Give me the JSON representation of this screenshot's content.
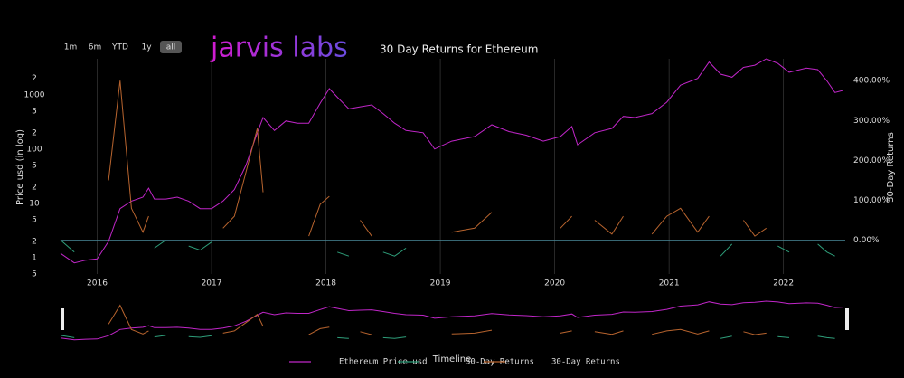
{
  "header": {
    "logo": "jarvis labs",
    "buttons": [
      "1m",
      "6m",
      "YTD",
      "1y",
      "all"
    ]
  },
  "chart_data": {
    "type": "line",
    "title": "30 Day Returns for Ethereum",
    "x_label": "Timeline",
    "y_label": "Price usd (in log)",
    "y2_label": "30-Day Returns",
    "yscale": "log",
    "grid": true,
    "x": [
      2015.68,
      2015.8,
      2015.9,
      2016.0,
      2016.1,
      2016.2,
      2016.3,
      2016.4,
      2016.45,
      2016.5,
      2016.6,
      2016.7,
      2016.8,
      2016.9,
      2017.0,
      2017.1,
      2017.2,
      2017.3,
      2017.4,
      2017.45,
      2017.55,
      2017.65,
      2017.75,
      2017.85,
      2017.95,
      2018.03,
      2018.1,
      2018.2,
      2018.3,
      2018.4,
      2018.5,
      2018.6,
      2018.7,
      2018.85,
      2018.95,
      2019.1,
      2019.3,
      2019.45,
      2019.6,
      2019.75,
      2019.9,
      2020.05,
      2020.15,
      2020.2,
      2020.35,
      2020.5,
      2020.6,
      2020.7,
      2020.85,
      2020.98,
      2021.1,
      2021.25,
      2021.35,
      2021.45,
      2021.55,
      2021.65,
      2021.75,
      2021.85,
      2021.95,
      2022.05,
      2022.2,
      2022.3,
      2022.38,
      2022.45,
      2022.52
    ],
    "series": [
      {
        "name": "Ethereum Price usd",
        "color": "#c026c8",
        "values": [
          1.2,
          0.8,
          0.9,
          0.95,
          2,
          8,
          11,
          13,
          19,
          12,
          12,
          13,
          11,
          8,
          8,
          11,
          18,
          50,
          200,
          380,
          220,
          330,
          300,
          300,
          700,
          1300,
          900,
          550,
          600,
          650,
          450,
          300,
          220,
          200,
          100,
          140,
          170,
          280,
          210,
          180,
          140,
          170,
          260,
          120,
          200,
          240,
          400,
          380,
          450,
          730,
          1500,
          2000,
          4000,
          2400,
          2100,
          3200,
          3500,
          4600,
          3800,
          2600,
          3100,
          2900,
          1800,
          1100,
          1200
        ]
      },
      {
        "name": "30-Day Returns",
        "color": "#2e9e7a",
        "axis": "y2",
        "values": [
          0,
          -30,
          null,
          -10,
          null,
          null,
          null,
          null,
          null,
          -20,
          0,
          null,
          -15,
          -25,
          -5,
          null,
          null,
          null,
          null,
          null,
          -30,
          null,
          -10,
          null,
          null,
          null,
          -30,
          -40,
          null,
          null,
          -30,
          -40,
          -20,
          null,
          -45,
          null,
          null,
          null,
          -25,
          null,
          -20,
          null,
          null,
          -50,
          null,
          null,
          null,
          -10,
          null,
          null,
          null,
          null,
          null,
          -40,
          -10,
          null,
          null,
          null,
          -15,
          -30,
          null,
          -10,
          -30,
          -40,
          null
        ]
      },
      {
        "name": "30-Day Returns",
        "color": "#b8642e",
        "axis": "y2",
        "values": [
          null,
          null,
          20,
          null,
          150,
          400,
          80,
          20,
          60,
          null,
          null,
          10,
          null,
          null,
          null,
          30,
          60,
          170,
          280,
          120,
          null,
          50,
          null,
          10,
          90,
          110,
          null,
          null,
          50,
          10,
          null,
          null,
          null,
          5,
          null,
          20,
          30,
          70,
          null,
          5,
          null,
          30,
          60,
          null,
          50,
          15,
          60,
          null,
          15,
          60,
          80,
          20,
          60,
          null,
          null,
          50,
          10,
          30,
          null,
          null,
          20,
          null,
          null,
          null,
          10
        ]
      }
    ],
    "xlim": [
      2015.68,
      2022.54
    ],
    "xticks": [
      2016,
      2017,
      2018,
      2019,
      2020,
      2021,
      2022
    ],
    "ylim": [
      0.5,
      4600
    ],
    "yticks": [
      {
        "value": 0.5,
        "label": "5"
      },
      1,
      2,
      5,
      10,
      {
        "value": 20,
        "label": "2"
      },
      {
        "value": 50,
        "label": "5"
      },
      100,
      {
        "value": 200,
        "label": "2"
      },
      {
        "value": 500,
        "label": "5"
      },
      1000,
      {
        "value": 2000,
        "label": "2"
      }
    ],
    "y2lim": [
      -85,
      455
    ],
    "y2ticks": [
      {
        "value": 0,
        "label": "0.00%"
      },
      {
        "value": 100,
        "label": "100.00%"
      },
      {
        "value": 200,
        "label": "200.00%"
      },
      {
        "value": 300,
        "label": "300.00%"
      },
      {
        "value": 400,
        "label": "400.00%"
      }
    ]
  }
}
